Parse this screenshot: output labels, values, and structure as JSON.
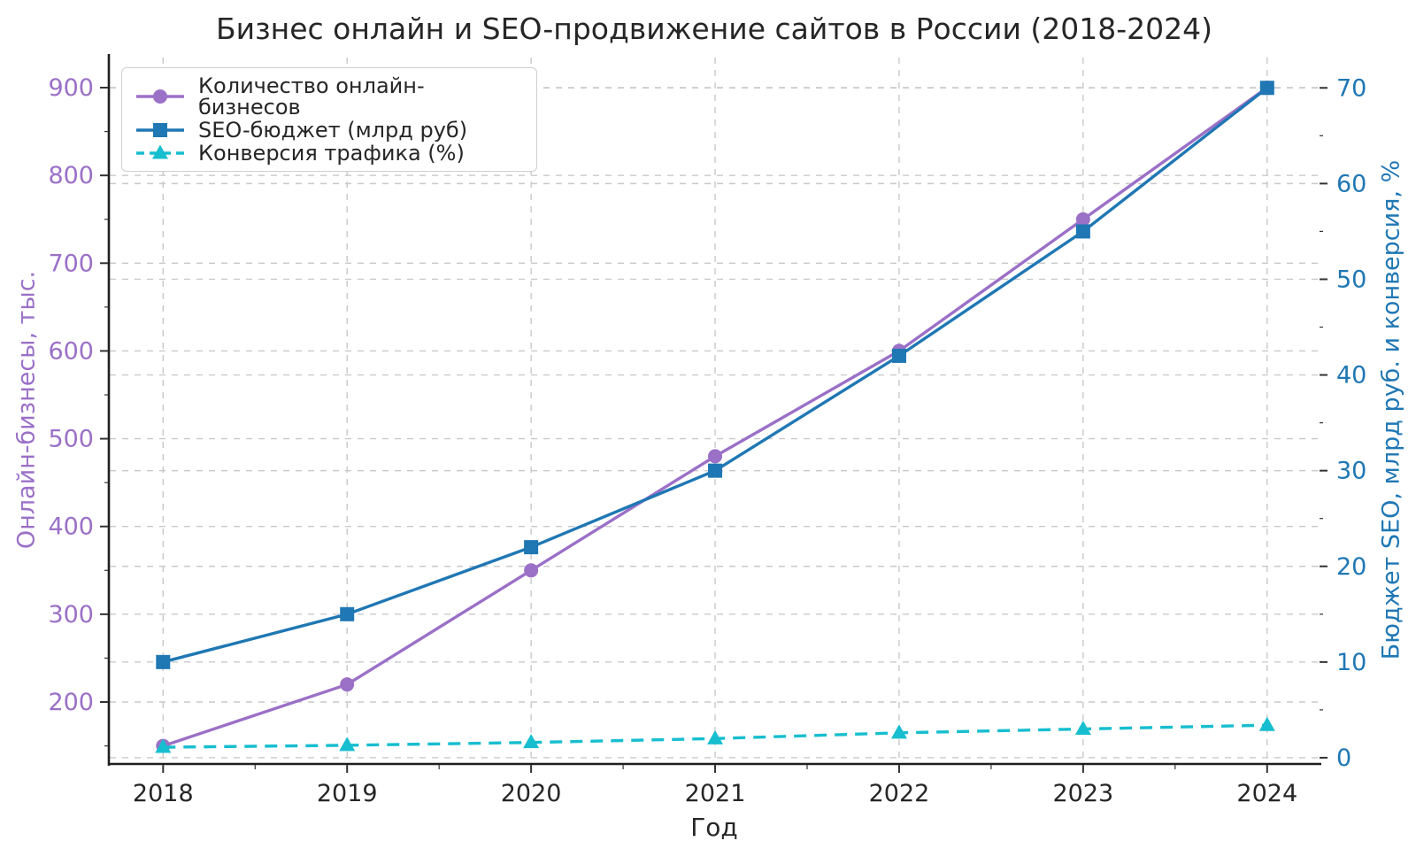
{
  "chart_data": {
    "type": "line",
    "title": "Бизнес онлайн и SEO-продвижение сайтов в России (2018-2024)",
    "xlabel": "Год",
    "x": [
      2018,
      2019,
      2020,
      2021,
      2022,
      2023,
      2024
    ],
    "x_range": [
      2017.71,
      2024.28
    ],
    "grid": true,
    "legend_position": "upper-left",
    "left_axis": {
      "label": "Онлайн-бизнесы, тыс.",
      "ticks": [
        200,
        300,
        400,
        500,
        600,
        700,
        800,
        900
      ],
      "minor_ticks": [
        150,
        250,
        350,
        450,
        550,
        650,
        750,
        850
      ],
      "range": [
        130.4,
        934.3
      ],
      "color": "#9b70c7"
    },
    "right_axis": {
      "label": "Бюджет SEO, млрд руб. и конверсия, %",
      "ticks": [
        0,
        10,
        20,
        30,
        40,
        50,
        60,
        70
      ],
      "minor_ticks": [
        5,
        15,
        25,
        35,
        45,
        55,
        65
      ],
      "range": [
        -0.56,
        73.17
      ],
      "color": "#1f77b4"
    },
    "x_minor_ticks": [
      2018.5,
      2019.5,
      2020.5,
      2021.5,
      2022.5,
      2023.5
    ],
    "series": [
      {
        "name": "Количество онлайн-бизнесов",
        "axis": "left",
        "color": "#9b70c7",
        "marker": "circle",
        "line_style": "solid",
        "values": [
          150,
          220,
          350,
          480,
          600,
          750,
          900
        ]
      },
      {
        "name": "SEO-бюджет (млрд руб)",
        "axis": "right",
        "color": "#1f77b4",
        "marker": "square",
        "line_style": "solid",
        "values": [
          10,
          15,
          22,
          30,
          42,
          55,
          70
        ]
      },
      {
        "name": "Конверсия трафика (%)",
        "axis": "right",
        "color": "#17becf",
        "marker": "triangle",
        "line_style": "dashed",
        "values": [
          1.1,
          1.3,
          1.6,
          2.0,
          2.6,
          3.0,
          3.4
        ]
      }
    ],
    "colors": {
      "grid": "#c9c9c9",
      "spine": "#1f1f1f",
      "tick": "#333333",
      "x_tick_label": "#262626",
      "title": "#262626"
    }
  }
}
